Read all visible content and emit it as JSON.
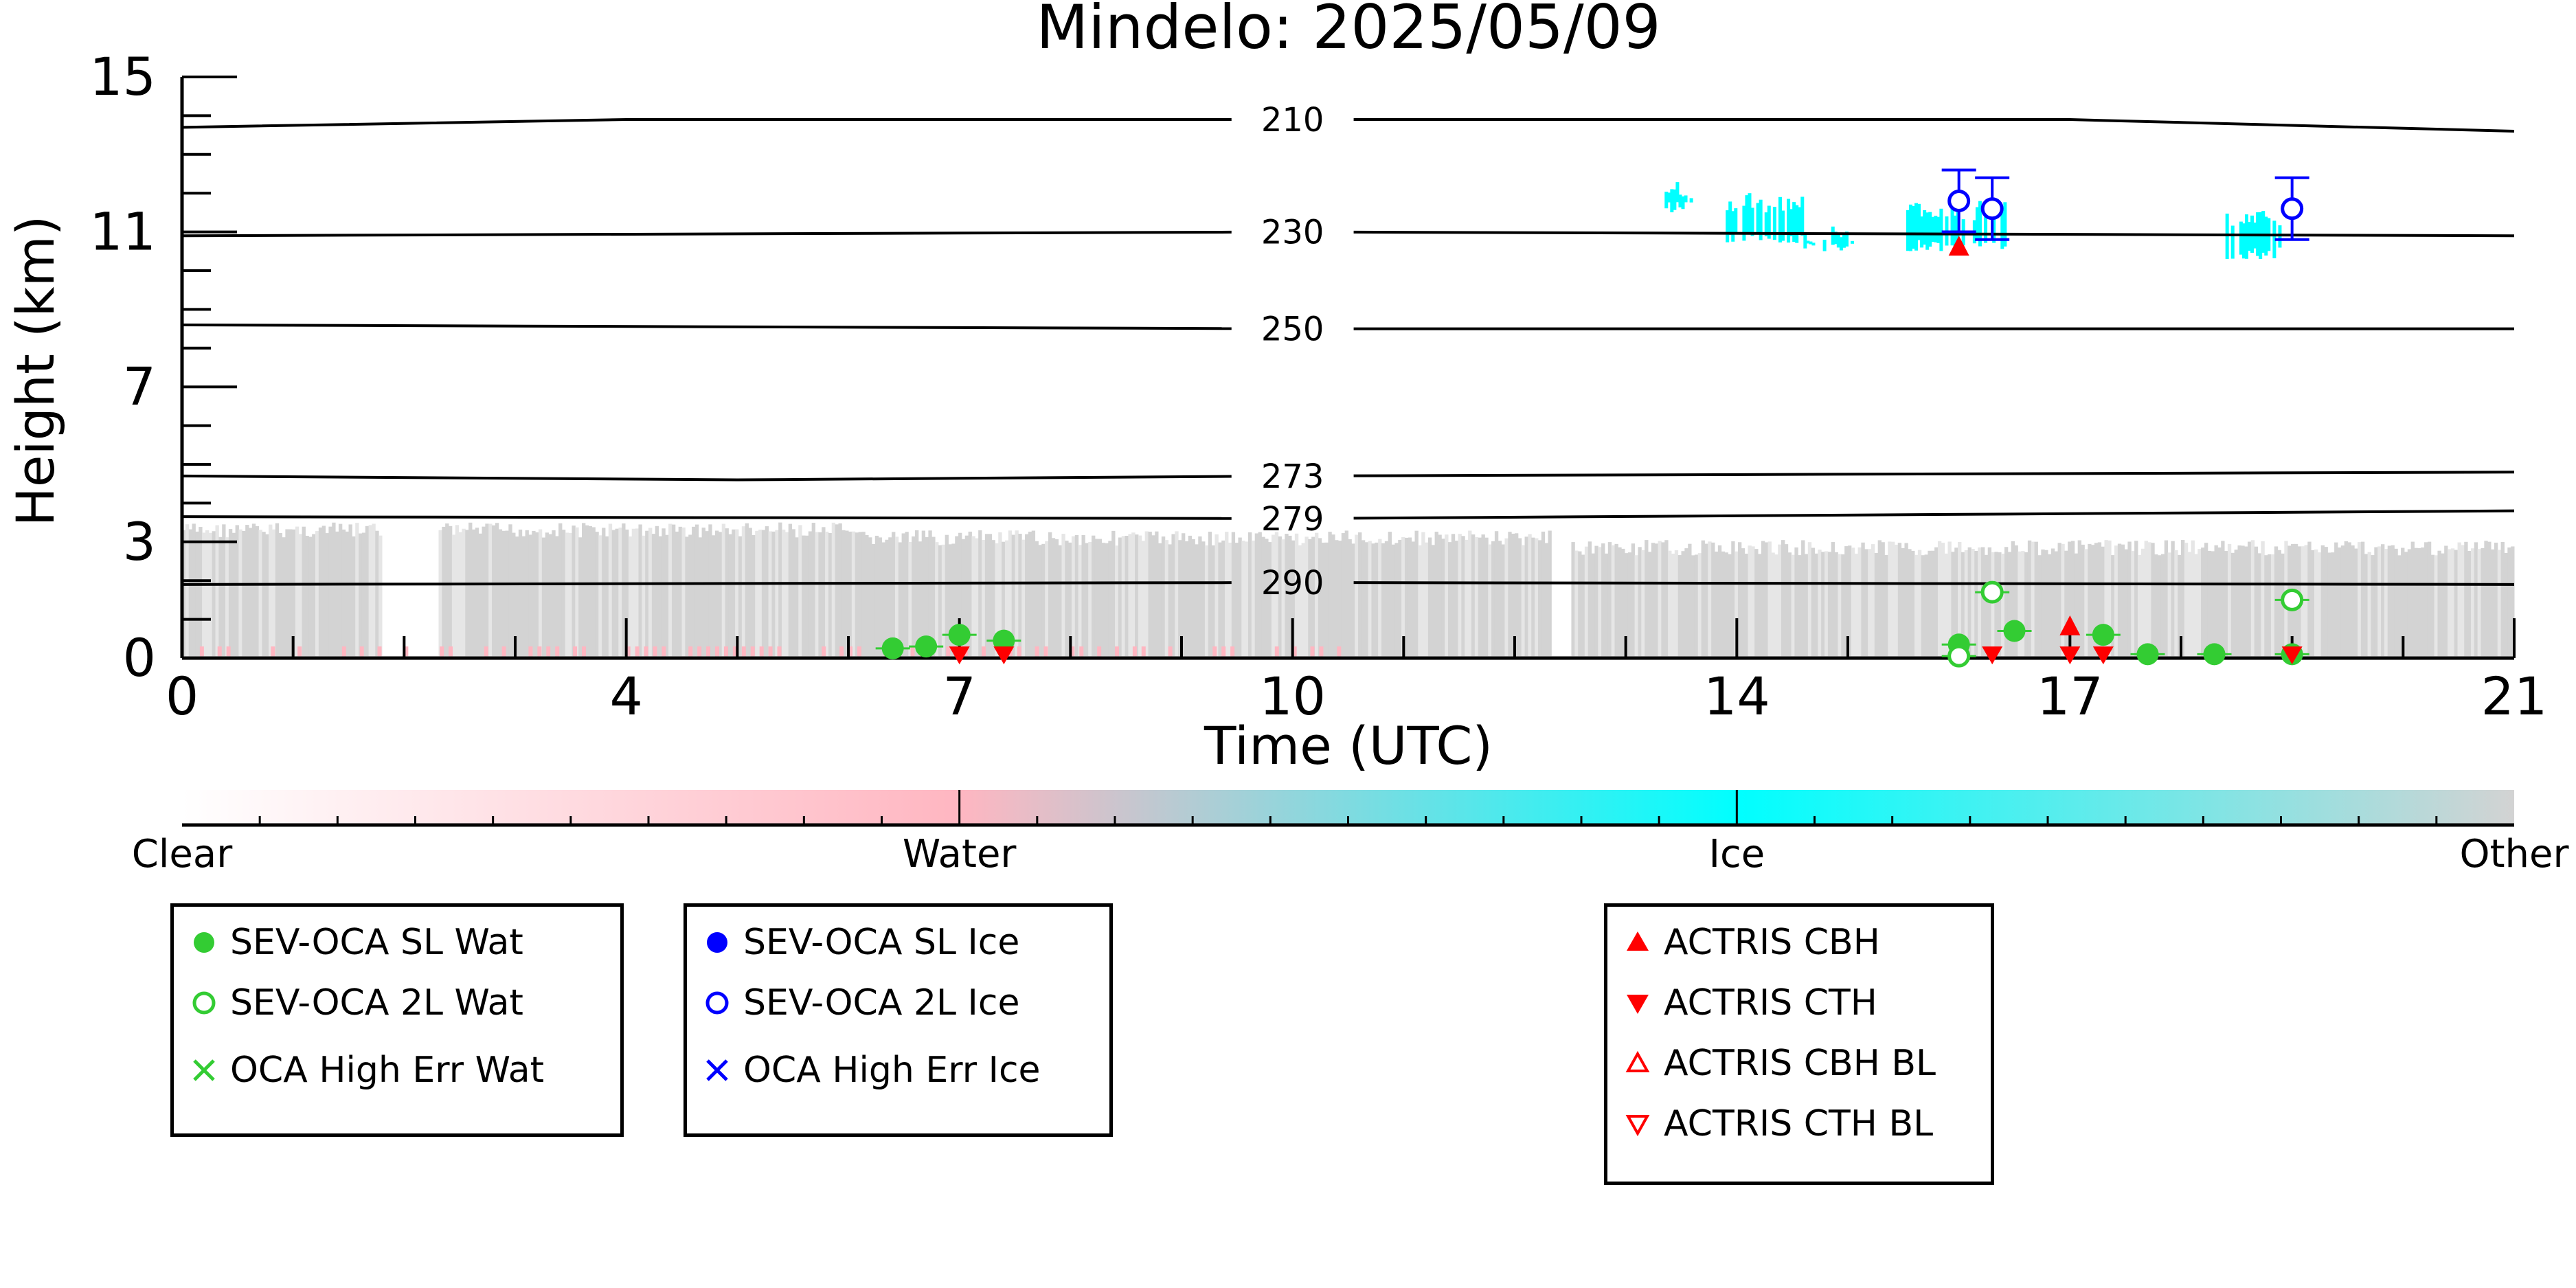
{
  "chart_data": {
    "type": "scatter",
    "title": "Mindelo: 2025/05/09",
    "xlabel": "Time (UTC)",
    "ylabel": "Height (km)",
    "xlim": [
      0,
      21
    ],
    "ylim": [
      0,
      15
    ],
    "x_ticks": [
      0,
      4,
      7,
      10,
      14,
      17,
      21
    ],
    "y_ticks": [
      0,
      3,
      7,
      11,
      15
    ],
    "isotherms": [
      {
        "label": "210",
        "points": [
          [
            0,
            13.7
          ],
          [
            4,
            13.9
          ],
          [
            10,
            13.9
          ],
          [
            17,
            13.9
          ],
          [
            21,
            13.6
          ]
        ]
      },
      {
        "label": "230",
        "points": [
          [
            0,
            10.9
          ],
          [
            10,
            11.0
          ],
          [
            21,
            10.9
          ]
        ]
      },
      {
        "label": "250",
        "points": [
          [
            0,
            8.6
          ],
          [
            10,
            8.5
          ],
          [
            21,
            8.5
          ]
        ]
      },
      {
        "label": "273",
        "points": [
          [
            0,
            4.7
          ],
          [
            5,
            4.6
          ],
          [
            10,
            4.7
          ],
          [
            21,
            4.8
          ]
        ]
      },
      {
        "label": "279",
        "points": [
          [
            0,
            3.65
          ],
          [
            10,
            3.6
          ],
          [
            21,
            3.8
          ]
        ]
      },
      {
        "label": "290",
        "points": [
          [
            0,
            1.9
          ],
          [
            10,
            1.95
          ],
          [
            21,
            1.9
          ]
        ]
      }
    ],
    "classification_colorbar": {
      "labels": [
        "Clear",
        "Water",
        "Ice",
        "Other"
      ],
      "colors": [
        "#ffffff",
        "#ffb6c1",
        "#00ffff",
        "#d3d3d3"
      ]
    },
    "series": [
      {
        "name": "SEV-OCA SL Wat",
        "color": "#33cc33",
        "marker": "filled-circle",
        "points": [
          [
            6.4,
            0.25
          ],
          [
            6.7,
            0.3
          ],
          [
            7.0,
            0.6
          ],
          [
            7.4,
            0.45
          ],
          [
            16.0,
            0.35
          ],
          [
            16.5,
            0.7
          ],
          [
            17.3,
            0.6
          ],
          [
            17.7,
            0.1
          ],
          [
            18.3,
            0.1
          ],
          [
            19.0,
            0.1
          ]
        ]
      },
      {
        "name": "SEV-OCA 2L Wat",
        "color": "#33cc33",
        "marker": "open-circle",
        "points": [
          [
            16.0,
            0.05
          ],
          [
            16.3,
            1.7
          ],
          [
            19.0,
            1.5
          ]
        ]
      },
      {
        "name": "OCA High Err Wat",
        "color": "#33cc33",
        "marker": "x",
        "points": []
      },
      {
        "name": "SEV-OCA SL Ice",
        "color": "#0000ff",
        "marker": "filled-circle",
        "points": []
      },
      {
        "name": "SEV-OCA 2L Ice",
        "color": "#0000ff",
        "marker": "open-circle",
        "points": [
          [
            16.0,
            11.8
          ],
          [
            16.3,
            11.6
          ],
          [
            19.0,
            11.6
          ]
        ]
      },
      {
        "name": "OCA High Err Ice",
        "color": "#0000ff",
        "marker": "x",
        "points": []
      },
      {
        "name": "ACTRIS CBH",
        "color": "#ff0000",
        "marker": "triangle-up",
        "points": [
          [
            16.0,
            10.6
          ],
          [
            17.0,
            0.8
          ]
        ]
      },
      {
        "name": "ACTRIS CTH",
        "color": "#ff0000",
        "marker": "triangle-down",
        "points": [
          [
            7.0,
            0.05
          ],
          [
            7.4,
            0.05
          ],
          [
            16.3,
            0.05
          ],
          [
            17.0,
            0.05
          ],
          [
            17.3,
            0.05
          ],
          [
            19.0,
            0.05
          ]
        ]
      },
      {
        "name": "ACTRIS CBH BL",
        "color": "#ff0000",
        "marker": "open-triangle-up",
        "points": []
      },
      {
        "name": "ACTRIS CTH BL",
        "color": "#ff0000",
        "marker": "open-triangle-down",
        "points": []
      }
    ]
  },
  "legends": {
    "water": [
      "SEV-OCA SL Wat",
      "SEV-OCA 2L Wat",
      "OCA High Err Wat"
    ],
    "ice": [
      "SEV-OCA SL Ice",
      "SEV-OCA 2L Ice",
      "OCA High Err Ice"
    ],
    "actris": [
      "ACTRIS CBH",
      "ACTRIS CTH",
      "ACTRIS CBH BL",
      "ACTRIS CTH BL"
    ]
  }
}
